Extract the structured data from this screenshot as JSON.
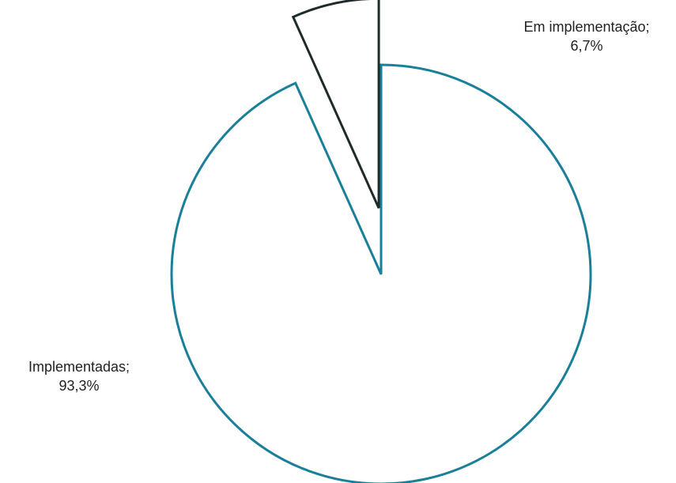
{
  "chart_data": {
    "type": "pie",
    "slices": [
      {
        "name": "Implementadas",
        "value": 93.3,
        "label": "Implementadas;",
        "value_label": "93,3%",
        "color": "#1a7f99",
        "exploded": false
      },
      {
        "name": "Em implementação",
        "value": 6.7,
        "label": "Em implementação;",
        "value_label": "6,7%",
        "color": "#1f2b2b",
        "exploded": true
      }
    ],
    "start": "12 o'clock",
    "direction": "clockwise",
    "fill": "#ffffff",
    "legend": "none"
  }
}
